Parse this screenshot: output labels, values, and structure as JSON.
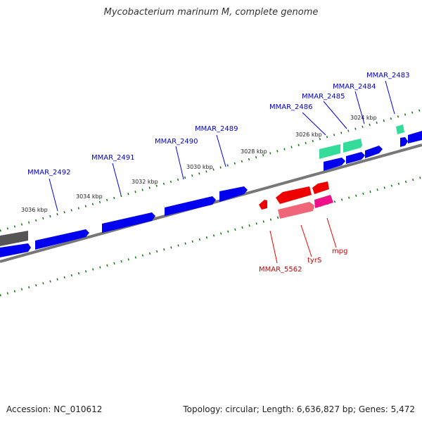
{
  "title": "Mycobacterium marinum M, complete genome",
  "footer": {
    "accession": "Accession: NC_010612",
    "topology": "Topology: circular; Length: 6,636,827 bp; Genes: 5,472"
  },
  "colors": {
    "forward_cds": "#0000ee",
    "rna_gene": "#33dd99",
    "reverse_cds": "#ee0000",
    "reverse_rna": "#ee6677",
    "reverse_magenta": "#ee1188",
    "pseudo_gene": "#555555",
    "backbone": "#777777",
    "ticks": "#117711"
  },
  "scale_labels": [
    "3036 kbp",
    "3034 kbp",
    "3032 kbp",
    "3030 kbp",
    "3028 kbp",
    "3026 kbp",
    "3024 kbp"
  ],
  "forward_labels": [
    "MMAR_2492",
    "MMAR_2491",
    "MMAR_2490",
    "MMAR_2489",
    "MMAR_2486",
    "MMAR_2485",
    "MMAR_2484",
    "MMAR_2483"
  ],
  "reverse_labels": [
    "MMAR_5562",
    "tyrS",
    "mpg"
  ]
}
